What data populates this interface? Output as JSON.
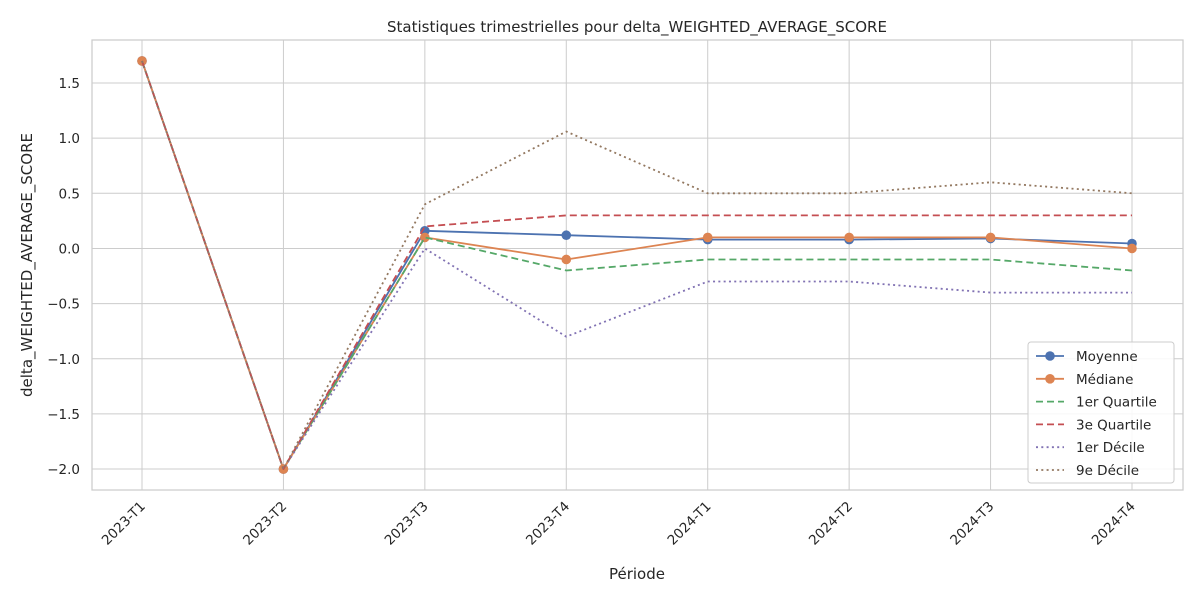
{
  "chart_data": {
    "type": "line",
    "title": "Statistiques trimestrielles pour delta_WEIGHTED_AVERAGE_SCORE",
    "xlabel": "Période",
    "ylabel": "delta_WEIGHTED_AVERAGE_SCORE",
    "categories": [
      "2023-T1",
      "2023-T2",
      "2023-T3",
      "2023-T4",
      "2024-T1",
      "2024-T2",
      "2024-T3",
      "2024-T4"
    ],
    "y_ticks": [
      -2.0,
      -1.5,
      -1.0,
      -0.5,
      0.0,
      0.5,
      1.0,
      1.5
    ],
    "y_tick_labels": [
      "−2.0",
      "−1.5",
      "−1.0",
      "−0.5",
      "0.0",
      "0.5",
      "1.0",
      "1.5"
    ],
    "ylim": [
      -2.19,
      1.89
    ],
    "grid": true,
    "legend_position": "lower-right",
    "series": [
      {
        "name": "Moyenne",
        "color": "#4c72b0",
        "style": "solid",
        "marker": "circle",
        "values": [
          1.7,
          -2.0,
          0.16,
          0.12,
          0.08,
          0.08,
          0.09,
          0.045
        ]
      },
      {
        "name": "Médiane",
        "color": "#dd8452",
        "style": "solid",
        "marker": "circle",
        "values": [
          1.7,
          -2.0,
          0.1,
          -0.1,
          0.1,
          0.1,
          0.1,
          0.0
        ]
      },
      {
        "name": "1er Quartile",
        "color": "#55a868",
        "style": "dashed",
        "marker": "none",
        "values": [
          1.7,
          -2.0,
          0.1,
          -0.2,
          -0.1,
          -0.1,
          -0.1,
          -0.2
        ]
      },
      {
        "name": "3e Quartile",
        "color": "#c44e52",
        "style": "dashed",
        "marker": "none",
        "values": [
          1.7,
          -2.0,
          0.2,
          0.3,
          0.3,
          0.3,
          0.3,
          0.3
        ]
      },
      {
        "name": "1er Décile",
        "color": "#8172b3",
        "style": "dotted",
        "marker": "none",
        "values": [
          1.7,
          -2.0,
          0.0,
          -0.8,
          -0.3,
          -0.3,
          -0.4,
          -0.4
        ]
      },
      {
        "name": "9e Décile",
        "color": "#937860",
        "style": "dotted",
        "marker": "none",
        "values": [
          1.7,
          -2.0,
          0.4,
          1.06,
          0.5,
          0.5,
          0.6,
          0.5
        ]
      }
    ]
  }
}
